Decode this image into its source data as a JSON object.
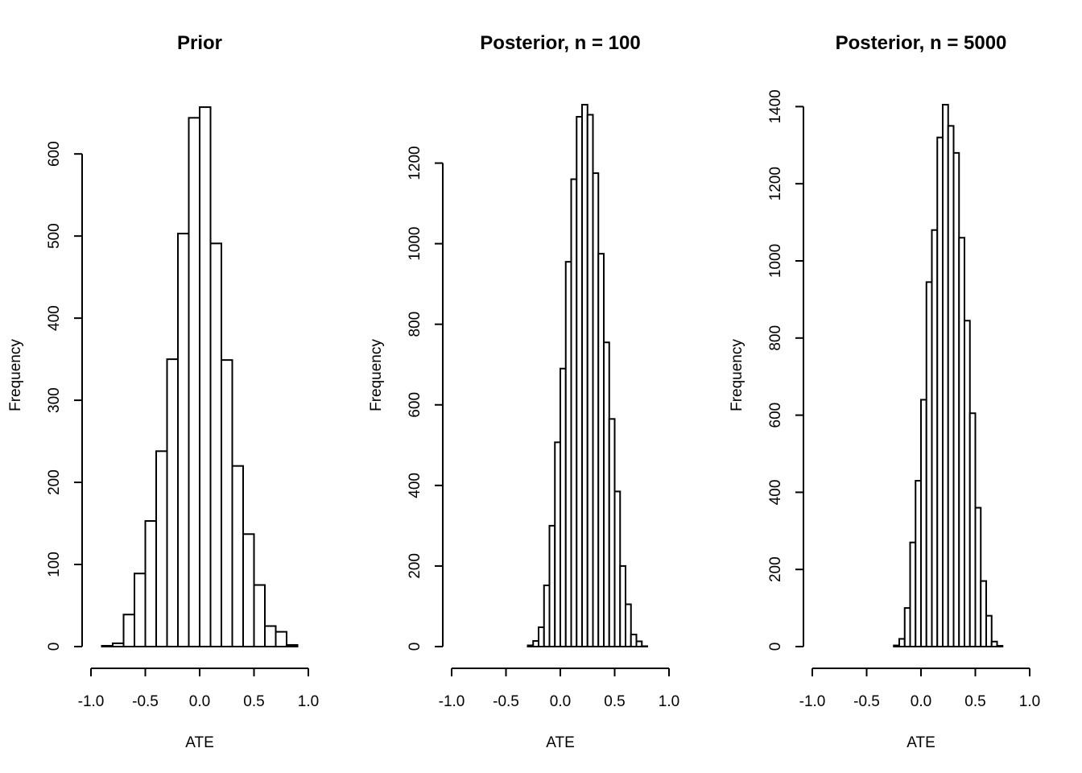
{
  "chart_data": [
    {
      "type": "bar",
      "title": "Prior",
      "xlabel": "ATE",
      "ylabel": "Frequency",
      "xlim": [
        -1.0,
        1.0
      ],
      "x_ticks": [
        -1.0,
        -0.5,
        0.0,
        0.5,
        1.0
      ],
      "x_tick_labels": [
        "-1.0",
        "-0.5",
        "0.0",
        "0.5",
        "1.0"
      ],
      "y_ticks": [
        0,
        100,
        200,
        300,
        400,
        500,
        600
      ],
      "y_tick_labels": [
        "0",
        "100",
        "200",
        "300",
        "400",
        "500",
        "600"
      ],
      "ylim": [
        0,
        660
      ],
      "bin_edges": [
        -0.9,
        -0.8,
        -0.7,
        -0.6,
        -0.5,
        -0.4,
        -0.3,
        -0.2,
        -0.1,
        0.0,
        0.1,
        0.2,
        0.3,
        0.4,
        0.5,
        0.6,
        0.7,
        0.8,
        0.9
      ],
      "values": [
        1,
        4,
        39,
        89,
        153,
        238,
        350,
        503,
        644,
        657,
        491,
        349,
        220,
        137,
        75,
        25,
        18,
        2
      ]
    },
    {
      "type": "bar",
      "title": "Posterior, n = 100",
      "xlabel": "ATE",
      "ylabel": "Frequency",
      "xlim": [
        -1.0,
        1.0
      ],
      "x_ticks": [
        -1.0,
        -0.5,
        0.0,
        0.5,
        1.0
      ],
      "x_tick_labels": [
        "-1.0",
        "-0.5",
        "0.0",
        "0.5",
        "1.0"
      ],
      "y_ticks": [
        0,
        200,
        400,
        600,
        800,
        1000,
        1200
      ],
      "y_tick_labels": [
        "0",
        "200",
        "400",
        "600",
        "800",
        "1000",
        "1200"
      ],
      "ylim": [
        0,
        1345
      ],
      "bin_edges": [
        -0.3,
        -0.25,
        -0.2,
        -0.15,
        -0.1,
        -0.05,
        0.0,
        0.05,
        0.1,
        0.15,
        0.2,
        0.25,
        0.3,
        0.35,
        0.4,
        0.45,
        0.5,
        0.55,
        0.6,
        0.65,
        0.7,
        0.75,
        0.8
      ],
      "values": [
        3,
        14,
        48,
        152,
        300,
        507,
        690,
        955,
        1160,
        1315,
        1345,
        1320,
        1175,
        975,
        755,
        565,
        385,
        200,
        105,
        30,
        13,
        1
      ]
    },
    {
      "type": "bar",
      "title": "Posterior, n = 5000",
      "xlabel": "ATE",
      "ylabel": "Frequency",
      "xlim": [
        -1.0,
        1.0
      ],
      "x_ticks": [
        -1.0,
        -0.5,
        0.0,
        0.5,
        1.0
      ],
      "x_tick_labels": [
        "-1.0",
        "-0.5",
        "0.0",
        "0.5",
        "1.0"
      ],
      "y_ticks": [
        0,
        200,
        400,
        600,
        800,
        1000,
        1200,
        1400
      ],
      "y_tick_labels": [
        "0",
        "200",
        "400",
        "600",
        "800",
        "1000",
        "1200",
        "1400"
      ],
      "ylim": [
        0,
        1405
      ],
      "bin_edges": [
        -0.25,
        -0.2,
        -0.15,
        -0.1,
        -0.05,
        0.0,
        0.05,
        0.1,
        0.15,
        0.2,
        0.25,
        0.3,
        0.35,
        0.4,
        0.45,
        0.5,
        0.55,
        0.6,
        0.65,
        0.7,
        0.75
      ],
      "values": [
        3,
        20,
        100,
        270,
        430,
        640,
        945,
        1080,
        1320,
        1405,
        1350,
        1280,
        1060,
        845,
        605,
        360,
        170,
        80,
        13,
        2
      ]
    }
  ]
}
